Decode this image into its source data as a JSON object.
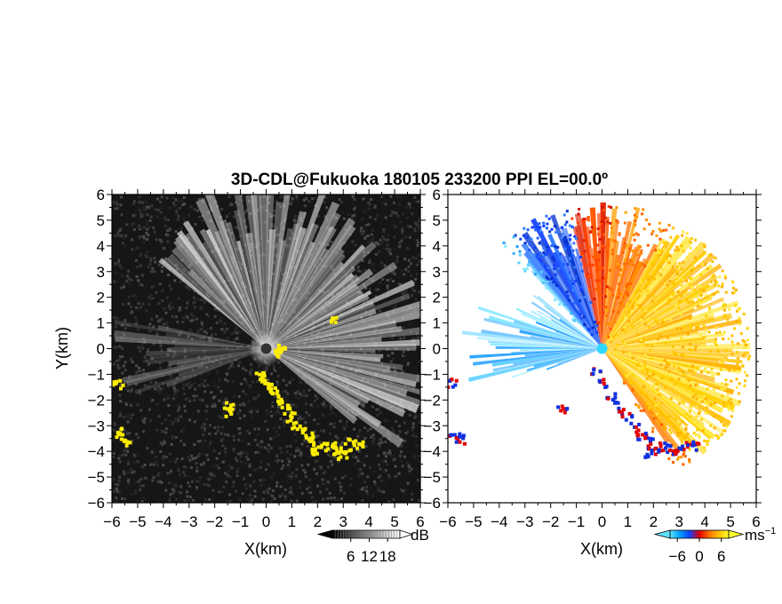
{
  "title": "3D-CDL@Fukuoka 180105 233200 PPI EL=00.0º",
  "chart_data": [
    {
      "type": "heatmap",
      "panel": "left",
      "quantity": "reflectivity",
      "xlabel": "X(km)",
      "ylabel": "Y(km)",
      "xlim": [
        -6,
        6
      ],
      "ylim": [
        -6,
        6
      ],
      "xticks": [
        "-6",
        "-5",
        "-4",
        "-3",
        "-2",
        "-1",
        "0",
        "1",
        "2",
        "3",
        "4",
        "5",
        "6"
      ],
      "yticks": [
        "-6",
        "-5",
        "-4",
        "-3",
        "-2",
        "-1",
        "0",
        "1",
        "2",
        "3",
        "4",
        "5",
        "6"
      ],
      "grid": false,
      "colorbar": {
        "unit": "dB",
        "ticks": [
          "6",
          "12",
          "18"
        ],
        "tick_values": [
          6,
          12,
          18
        ],
        "range": [
          0,
          22
        ],
        "colors": [
          "#000000",
          "#ffffff"
        ]
      },
      "highlight_color": "#ffee00"
    },
    {
      "type": "heatmap",
      "panel": "right",
      "quantity": "radial velocity",
      "xlabel": "X(km)",
      "ylabel": "",
      "xlim": [
        -6,
        6
      ],
      "ylim": [
        -6,
        6
      ],
      "xticks": [
        "-6",
        "-5",
        "-4",
        "-3",
        "-2",
        "-1",
        "0",
        "1",
        "2",
        "3",
        "4",
        "5",
        "6"
      ],
      "yticks": [
        "-6",
        "-5",
        "-4",
        "-3",
        "-2",
        "-1",
        "0",
        "1",
        "2",
        "3",
        "4",
        "5",
        "6"
      ],
      "grid": false,
      "colorbar": {
        "unit": "ms",
        "unit_exp": "−1",
        "ticks": [
          "−6",
          "0",
          "6"
        ],
        "tick_values": [
          -6,
          0,
          6
        ],
        "range": [
          -8,
          8
        ],
        "colors": [
          "#5fe0ff",
          "#00a0ff",
          "#1040ff",
          "#e00000",
          "#ff7000",
          "#ffc000",
          "#ffff30"
        ]
      }
    }
  ]
}
